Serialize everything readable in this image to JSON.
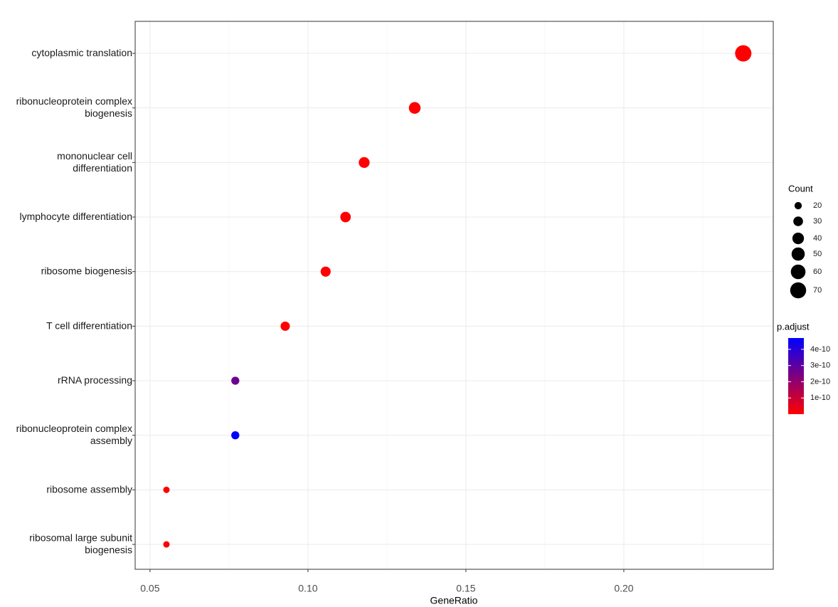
{
  "chart_data": {
    "type": "scatter",
    "x_label": "GeneRatio",
    "categories": [
      "cytoplasmic translation",
      "ribonucleoprotein complex\nbiogenesis",
      "mononuclear cell\ndifferentiation",
      "lymphocyte differentiation",
      "ribosome biogenesis",
      "T cell differentiation",
      "rRNA processing",
      "ribonucleoprotein complex\nassembly",
      "ribosome assembly",
      "ribosomal large subunit\nbiogenesis"
    ],
    "values": [
      0.2378,
      0.1338,
      0.1178,
      0.1119,
      0.1056,
      0.0928,
      0.077,
      0.077,
      0.0552,
      0.0552
    ],
    "count": [
      73,
      41,
      36,
      34,
      32,
      28,
      23,
      23,
      17,
      17
    ],
    "p_adjust": [
      1e-40,
      2e-20,
      5e-15,
      8e-14,
      1e-16,
      3e-12,
      2.7e-10,
      4.7e-10,
      5e-12,
      8e-12
    ],
    "xlim": [
      0.0453,
      0.2473
    ],
    "xticks": [
      0.05,
      {
        "value": 0.1,
        "label": "0.10"
      },
      0.15,
      {
        "value": 0.2,
        "label": "0.20"
      }
    ],
    "xminor": [
      0.075,
      0.125,
      0.175,
      0.225
    ],
    "grid": true,
    "size_legend": {
      "title": "Count",
      "values": [
        20,
        30,
        40,
        50,
        60,
        70
      ]
    },
    "color_legend": {
      "title": "p.adjust",
      "lim": [
        0,
        4.7e-10
      ],
      "ticks": [
        4e-10,
        3e-10,
        2e-10,
        1e-10
      ],
      "low": "#ff0000",
      "high": "#0000ff"
    }
  }
}
